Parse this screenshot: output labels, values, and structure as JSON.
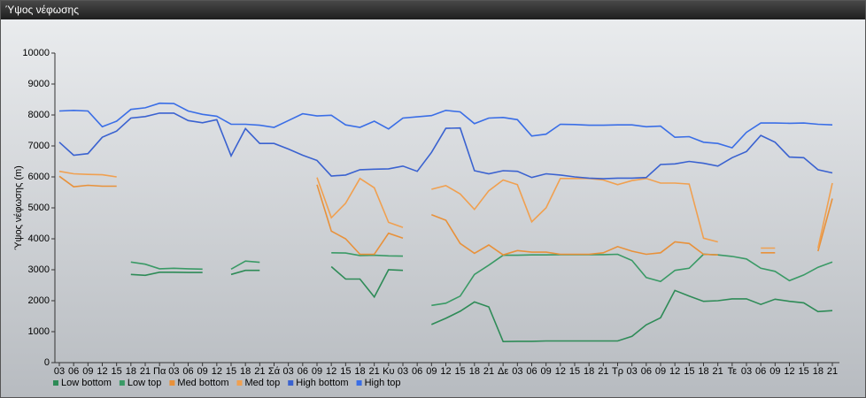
{
  "chart_data": {
    "type": "line",
    "title": "Ύψος νέφωσης",
    "ylabel": "Ύψος νέφωσης (m)",
    "categories": [
      "03",
      "06",
      "09",
      "12",
      "15",
      "18",
      "21",
      "Πα",
      "03",
      "06",
      "09",
      "12",
      "15",
      "18",
      "21",
      "Σά",
      "03",
      "06",
      "09",
      "12",
      "15",
      "18",
      "21",
      "Κυ",
      "03",
      "06",
      "09",
      "12",
      "15",
      "18",
      "21",
      "Δε",
      "03",
      "06",
      "09",
      "12",
      "15",
      "18",
      "21",
      "Τρ",
      "03",
      "06",
      "09",
      "12",
      "15",
      "18",
      "21",
      "Τε",
      "03",
      "06",
      "09",
      "12",
      "15",
      "18",
      "21"
    ],
    "ylim": [
      0,
      10000
    ],
    "yticks": [
      0,
      1000,
      2000,
      3000,
      4000,
      5000,
      6000,
      7000,
      8000,
      9000,
      10000
    ],
    "grid": false,
    "legend": "bottom-left",
    "series": [
      {
        "name": "Low bottom",
        "color": "#2e8b57",
        "values": [
          null,
          null,
          null,
          null,
          null,
          2850,
          2820,
          2920,
          2920,
          2910,
          2910,
          null,
          2850,
          2980,
          2980,
          null,
          null,
          null,
          null,
          3100,
          2700,
          2700,
          2120,
          3000,
          2980,
          null,
          1230,
          1430,
          1660,
          1960,
          1800,
          680,
          690,
          690,
          700,
          700,
          700,
          700,
          700,
          700,
          850,
          1220,
          1450,
          2330,
          2150,
          1980,
          2000,
          2060,
          2060,
          1880,
          2050,
          1980,
          1930,
          1650,
          1680
        ]
      },
      {
        "name": "Low top",
        "color": "#3a9a66",
        "values": [
          null,
          null,
          null,
          null,
          null,
          3250,
          3180,
          3030,
          3050,
          3030,
          3020,
          null,
          3020,
          3280,
          3240,
          null,
          null,
          null,
          null,
          3550,
          3540,
          3460,
          3470,
          3450,
          3440,
          null,
          1850,
          1920,
          2150,
          2850,
          3150,
          3470,
          3470,
          3480,
          3480,
          3490,
          3490,
          3490,
          3490,
          3500,
          3300,
          2750,
          2620,
          2980,
          3050,
          3500,
          3480,
          3430,
          3350,
          3050,
          2950,
          2650,
          2830,
          3080,
          3250
        ]
      },
      {
        "name": "Med bottom",
        "color": "#e8913a",
        "values": [
          6020,
          5680,
          5730,
          5700,
          5700,
          null,
          null,
          null,
          null,
          null,
          null,
          null,
          null,
          null,
          null,
          null,
          null,
          null,
          5750,
          4250,
          4000,
          3500,
          3500,
          4180,
          4020,
          null,
          4780,
          4600,
          3850,
          3530,
          3800,
          3480,
          3620,
          3570,
          3570,
          3500,
          3500,
          3500,
          3550,
          3750,
          3600,
          3500,
          3550,
          3900,
          3850,
          3500,
          3480,
          null,
          null,
          3550,
          3550,
          null,
          null,
          3600,
          5300
        ]
      },
      {
        "name": "Med top",
        "color": "#f0a050",
        "values": [
          6180,
          6100,
          6080,
          6070,
          6000,
          null,
          null,
          null,
          null,
          null,
          null,
          null,
          null,
          null,
          null,
          null,
          null,
          null,
          5980,
          4680,
          5150,
          5950,
          5650,
          4530,
          4370,
          null,
          5600,
          5720,
          5450,
          4950,
          5550,
          5900,
          5750,
          4550,
          5000,
          5950,
          5950,
          5950,
          5900,
          5750,
          5880,
          5950,
          5800,
          5800,
          5770,
          4020,
          3900,
          null,
          null,
          3700,
          3700,
          null,
          null,
          3700,
          5800
        ]
      },
      {
        "name": "High bottom",
        "color": "#3a62d0",
        "values": [
          7120,
          6700,
          6750,
          7280,
          7480,
          7900,
          7950,
          8060,
          8060,
          7820,
          7750,
          7850,
          6680,
          7560,
          7080,
          7080,
          6900,
          6700,
          6530,
          6030,
          6060,
          6230,
          6250,
          6260,
          6350,
          6180,
          6790,
          7570,
          7580,
          6200,
          6100,
          6200,
          6180,
          5980,
          6100,
          6060,
          6000,
          5960,
          5940,
          5960,
          5960,
          5980,
          6400,
          6420,
          6500,
          6440,
          6350,
          6620,
          6820,
          7340,
          7120,
          6640,
          6620,
          6230,
          6130
        ]
      },
      {
        "name": "High top",
        "color": "#3a6ee6",
        "values": [
          8130,
          8150,
          8130,
          7620,
          7800,
          8180,
          8230,
          8380,
          8370,
          8130,
          8020,
          7960,
          7700,
          7700,
          7670,
          7600,
          7820,
          8040,
          7970,
          7990,
          7680,
          7600,
          7800,
          7550,
          7900,
          7940,
          7980,
          8150,
          8100,
          7720,
          7900,
          7920,
          7850,
          7320,
          7380,
          7700,
          7690,
          7670,
          7670,
          7680,
          7680,
          7620,
          7640,
          7280,
          7300,
          7120,
          7080,
          6940,
          7440,
          7740,
          7740,
          7730,
          7740,
          7700,
          7680
        ]
      }
    ]
  }
}
